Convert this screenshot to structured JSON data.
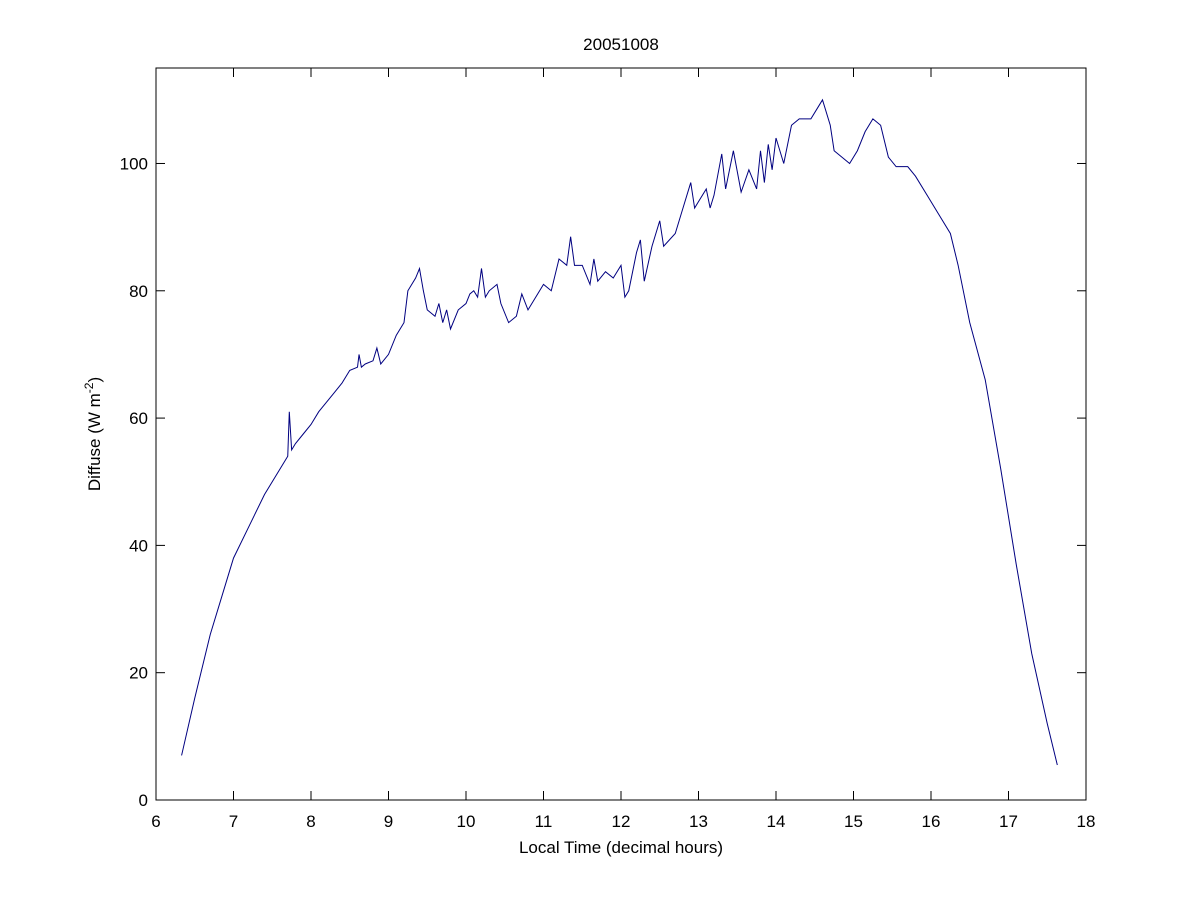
{
  "chart_data": {
    "type": "line",
    "title": "20051008",
    "xlabel": "Local Time (decimal hours)",
    "ylabel": [
      "Diffuse (W m",
      "-2",
      ")"
    ],
    "color": "#000080",
    "xlim": [
      6,
      18
    ],
    "xticks": [
      6,
      7,
      8,
      9,
      10,
      11,
      12,
      13,
      14,
      15,
      16,
      17,
      18
    ],
    "ylim": [
      0,
      115
    ],
    "yticks": [
      0,
      20,
      40,
      60,
      80,
      100
    ],
    "x": [
      6.33,
      6.5,
      6.7,
      6.9,
      7.0,
      7.2,
      7.4,
      7.5,
      7.6,
      7.7,
      7.72,
      7.75,
      7.8,
      7.9,
      8.0,
      8.1,
      8.2,
      8.3,
      8.4,
      8.5,
      8.6,
      8.62,
      8.65,
      8.7,
      8.8,
      8.85,
      8.9,
      9.0,
      9.1,
      9.2,
      9.25,
      9.35,
      9.4,
      9.45,
      9.5,
      9.6,
      9.65,
      9.7,
      9.75,
      9.8,
      9.9,
      10.0,
      10.05,
      10.1,
      10.15,
      10.2,
      10.25,
      10.3,
      10.4,
      10.45,
      10.55,
      10.65,
      10.72,
      10.8,
      10.9,
      11.0,
      11.1,
      11.2,
      11.3,
      11.35,
      11.4,
      11.5,
      11.6,
      11.65,
      11.7,
      11.8,
      11.9,
      12.0,
      12.05,
      12.1,
      12.2,
      12.25,
      12.3,
      12.4,
      12.5,
      12.55,
      12.7,
      12.8,
      12.9,
      12.95,
      13.0,
      13.1,
      13.15,
      13.2,
      13.3,
      13.35,
      13.45,
      13.55,
      13.65,
      13.75,
      13.8,
      13.85,
      13.9,
      13.95,
      14.0,
      14.1,
      14.2,
      14.3,
      14.45,
      14.55,
      14.6,
      14.7,
      14.75,
      14.85,
      14.95,
      15.05,
      15.15,
      15.25,
      15.35,
      15.45,
      15.55,
      15.7,
      15.8,
      15.95,
      16.1,
      16.25,
      16.35,
      16.5,
      16.7,
      16.9,
      17.1,
      17.3,
      17.5,
      17.63
    ],
    "values": [
      7,
      16,
      26,
      34,
      38,
      43,
      48,
      50,
      52,
      54,
      61,
      55,
      56,
      57.5,
      59,
      61,
      62.5,
      64,
      65.5,
      67.5,
      68,
      70,
      68,
      68.5,
      69,
      71,
      68.5,
      70,
      73,
      75,
      80,
      82,
      83.5,
      80,
      77,
      76,
      78,
      75,
      77,
      74,
      77,
      78,
      79.5,
      80,
      79,
      83.5,
      79,
      80,
      81,
      78,
      75,
      76,
      79.5,
      77,
      79,
      81,
      80,
      85,
      84,
      88.5,
      84,
      84,
      81,
      85,
      81.5,
      83,
      82,
      84,
      79,
      80,
      86,
      88,
      81.5,
      87,
      91,
      87,
      89,
      93,
      97,
      93,
      94,
      96,
      93,
      95,
      101.5,
      96,
      102,
      95.5,
      99,
      96,
      102,
      97,
      103,
      99,
      104,
      100,
      106,
      107,
      107,
      109,
      110,
      106,
      102,
      101,
      100,
      102,
      105,
      107,
      106,
      101,
      99.5,
      99.5,
      98,
      95,
      92,
      89,
      84,
      75,
      66,
      52,
      37,
      23,
      12,
      5.5
    ]
  }
}
